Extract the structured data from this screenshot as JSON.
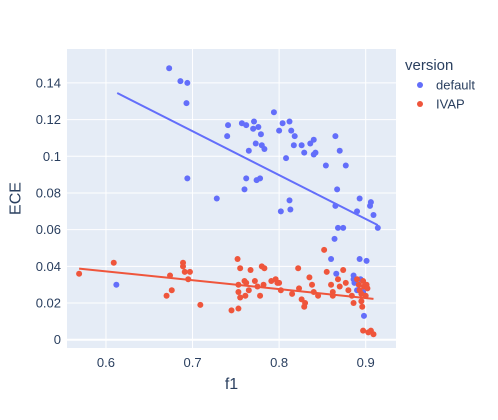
{
  "chart_data": {
    "type": "scatter",
    "xlabel": "f1",
    "ylabel": "ECE",
    "xlim": [
      0.555,
      0.935
    ],
    "ylim": [
      -0.0045,
      0.1585
    ],
    "x_ticks": [
      0.6,
      0.7,
      0.8,
      0.9
    ],
    "x_tick_labels": [
      "0.6",
      "0.7",
      "0.8",
      "0.9"
    ],
    "y_ticks": [
      0,
      0.02,
      0.04,
      0.06,
      0.08,
      0.1,
      0.12,
      0.14
    ],
    "y_tick_labels": [
      "0",
      "0.02",
      "0.04",
      "0.06",
      "0.08",
      "0.1",
      "0.12",
      "0.14"
    ],
    "grid": true,
    "plot_background": "#e5ecf6",
    "legend": {
      "title": "version",
      "placement": "right"
    },
    "series": [
      {
        "name": "default",
        "color": "#636efa",
        "points": [
          [
            0.612,
            0.03
          ],
          [
            0.673,
            0.148
          ],
          [
            0.686,
            0.141
          ],
          [
            0.694,
            0.14
          ],
          [
            0.693,
            0.129
          ],
          [
            0.694,
            0.088
          ],
          [
            0.728,
            0.077
          ],
          [
            0.741,
            0.117
          ],
          [
            0.74,
            0.111
          ],
          [
            0.757,
            0.118
          ],
          [
            0.762,
            0.117
          ],
          [
            0.771,
            0.119
          ],
          [
            0.77,
            0.115
          ],
          [
            0.776,
            0.116
          ],
          [
            0.779,
            0.112
          ],
          [
            0.765,
            0.103
          ],
          [
            0.773,
            0.107
          ],
          [
            0.783,
            0.104
          ],
          [
            0.78,
            0.106
          ],
          [
            0.762,
            0.088
          ],
          [
            0.76,
            0.082
          ],
          [
            0.774,
            0.087
          ],
          [
            0.778,
            0.088
          ],
          [
            0.794,
            0.124
          ],
          [
            0.804,
            0.118
          ],
          [
            0.8,
            0.114
          ],
          [
            0.812,
            0.119
          ],
          [
            0.814,
            0.114
          ],
          [
            0.818,
            0.111
          ],
          [
            0.817,
            0.106
          ],
          [
            0.826,
            0.106
          ],
          [
            0.836,
            0.107
          ],
          [
            0.829,
            0.102
          ],
          [
            0.84,
            0.109
          ],
          [
            0.842,
            0.102
          ],
          [
            0.84,
            0.101
          ],
          [
            0.808,
            0.099
          ],
          [
            0.812,
            0.076
          ],
          [
            0.813,
            0.071
          ],
          [
            0.802,
            0.07
          ],
          [
            0.854,
            0.095
          ],
          [
            0.865,
            0.111
          ],
          [
            0.87,
            0.103
          ],
          [
            0.877,
            0.095
          ],
          [
            0.867,
            0.082
          ],
          [
            0.865,
            0.073
          ],
          [
            0.864,
            0.055
          ],
          [
            0.868,
            0.061
          ],
          [
            0.874,
            0.061
          ],
          [
            0.893,
            0.077
          ],
          [
            0.89,
            0.07
          ],
          [
            0.905,
            0.073
          ],
          [
            0.906,
            0.075
          ],
          [
            0.909,
            0.068
          ],
          [
            0.914,
            0.061
          ],
          [
            0.86,
            0.044
          ],
          [
            0.866,
            0.036
          ],
          [
            0.886,
            0.035
          ],
          [
            0.886,
            0.033
          ],
          [
            0.887,
            0.031
          ],
          [
            0.893,
            0.044
          ],
          [
            0.901,
            0.043
          ],
          [
            0.894,
            0.033
          ],
          [
            0.898,
            0.013
          ],
          [
            0.89,
            0.027
          ],
          [
            0.897,
            0.026
          ]
        ]
      },
      {
        "name": "IVAP",
        "color": "#ef553b",
        "points": [
          [
            0.569,
            0.036
          ],
          [
            0.609,
            0.042
          ],
          [
            0.674,
            0.035
          ],
          [
            0.676,
            0.027
          ],
          [
            0.67,
            0.024
          ],
          [
            0.689,
            0.042
          ],
          [
            0.689,
            0.04
          ],
          [
            0.691,
            0.037
          ],
          [
            0.697,
            0.037
          ],
          [
            0.695,
            0.033
          ],
          [
            0.709,
            0.019
          ],
          [
            0.745,
            0.016
          ],
          [
            0.752,
            0.044
          ],
          [
            0.755,
            0.039
          ],
          [
            0.753,
            0.03
          ],
          [
            0.753,
            0.026
          ],
          [
            0.755,
            0.023
          ],
          [
            0.753,
            0.017
          ],
          [
            0.76,
            0.032
          ],
          [
            0.762,
            0.031
          ],
          [
            0.765,
            0.027
          ],
          [
            0.761,
            0.024
          ],
          [
            0.767,
            0.038
          ],
          [
            0.772,
            0.032
          ],
          [
            0.775,
            0.029
          ],
          [
            0.78,
            0.04
          ],
          [
            0.783,
            0.039
          ],
          [
            0.782,
            0.03
          ],
          [
            0.778,
            0.024
          ],
          [
            0.791,
            0.032
          ],
          [
            0.796,
            0.033
          ],
          [
            0.798,
            0.031
          ],
          [
            0.8,
            0.031
          ],
          [
            0.802,
            0.027
          ],
          [
            0.815,
            0.025
          ],
          [
            0.822,
            0.039
          ],
          [
            0.823,
            0.028
          ],
          [
            0.826,
            0.022
          ],
          [
            0.829,
            0.018
          ],
          [
            0.83,
            0.02
          ],
          [
            0.835,
            0.034
          ],
          [
            0.838,
            0.03
          ],
          [
            0.84,
            0.026
          ],
          [
            0.845,
            0.024
          ],
          [
            0.852,
            0.049
          ],
          [
            0.855,
            0.037
          ],
          [
            0.86,
            0.03
          ],
          [
            0.862,
            0.026
          ],
          [
            0.862,
            0.024
          ],
          [
            0.868,
            0.033
          ],
          [
            0.87,
            0.029
          ],
          [
            0.874,
            0.038
          ],
          [
            0.877,
            0.031
          ],
          [
            0.88,
            0.027
          ],
          [
            0.884,
            0.024
          ],
          [
            0.886,
            0.02
          ],
          [
            0.89,
            0.033
          ],
          [
            0.892,
            0.03
          ],
          [
            0.893,
            0.027
          ],
          [
            0.895,
            0.025
          ],
          [
            0.895,
            0.021
          ],
          [
            0.896,
            0.018
          ],
          [
            0.897,
            0.032
          ],
          [
            0.898,
            0.029
          ],
          [
            0.9,
            0.024
          ],
          [
            0.901,
            0.03
          ],
          [
            0.902,
            0.028
          ],
          [
            0.897,
            0.005
          ],
          [
            0.903,
            0.004
          ],
          [
            0.906,
            0.005
          ],
          [
            0.909,
            0.003
          ]
        ]
      }
    ],
    "trendlines": [
      {
        "series": "default",
        "color": "#636efa",
        "x": [
          0.613,
          0.914
        ],
        "y": [
          0.1345,
          0.0625
        ]
      },
      {
        "series": "IVAP",
        "color": "#ef553b",
        "x": [
          0.569,
          0.909
        ],
        "y": [
          0.0388,
          0.0223
        ]
      }
    ]
  }
}
